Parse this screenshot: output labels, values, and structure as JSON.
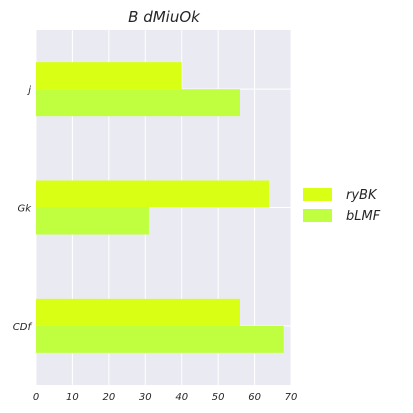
{
  "chart_data": {
    "type": "bar",
    "orientation": "horizontal",
    "title": "B dMiuOk",
    "xlabel": "",
    "ylabel": "",
    "categories": [
      "j",
      "Gk",
      "CDf"
    ],
    "series": [
      {
        "name": "ryBK",
        "values": [
          40,
          64,
          56
        ]
      },
      {
        "name": "bLMF",
        "values": [
          56,
          31,
          68
        ]
      }
    ],
    "xlim": [
      0,
      70
    ],
    "xticks": [
      0,
      10,
      20,
      30,
      40,
      50,
      60,
      70
    ],
    "grid": true,
    "legend_position": "right"
  },
  "colors": {
    "background": "#eaeaf2",
    "grid": "#ffffff",
    "series": [
      "#d9ff14",
      "#bfff3f"
    ]
  }
}
